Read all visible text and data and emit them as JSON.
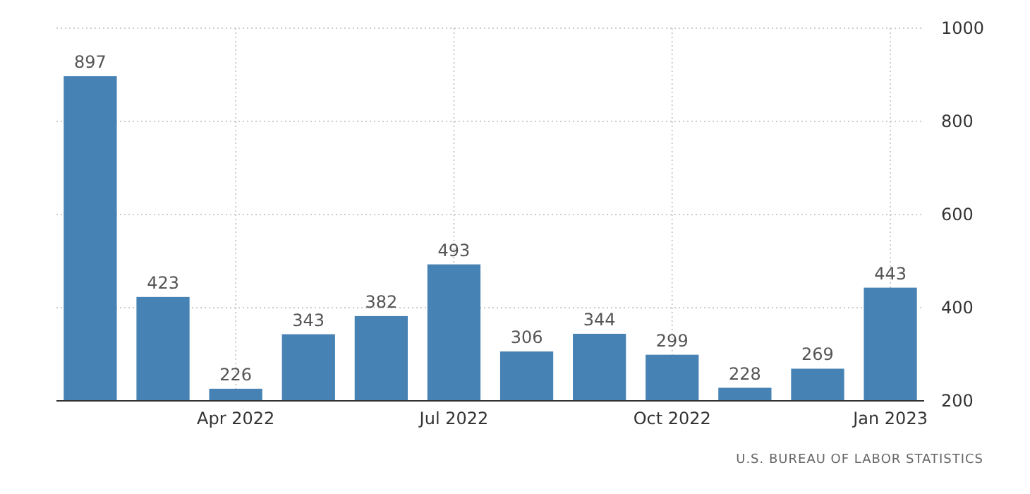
{
  "chart_data": {
    "type": "bar",
    "categories": [
      null,
      null,
      "Apr 2022",
      null,
      null,
      "Jul 2022",
      null,
      null,
      "Oct 2022",
      null,
      null,
      "Jan 2023"
    ],
    "values": [
      897,
      423,
      226,
      343,
      382,
      493,
      306,
      344,
      299,
      228,
      269,
      443
    ],
    "color": "#4682b4",
    "ylim": [
      200,
      1000
    ],
    "yticks": [
      200,
      400,
      600,
      800,
      1000
    ],
    "grid": true,
    "data_labels": true,
    "annotations": [
      "U.S. BUREAU OF LABOR STATISTICS"
    ]
  }
}
